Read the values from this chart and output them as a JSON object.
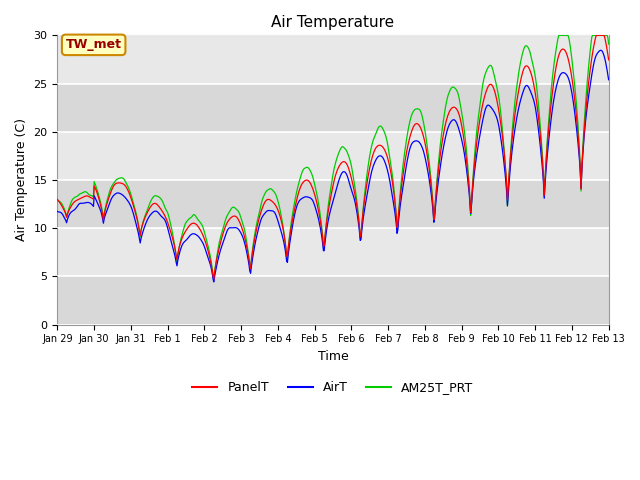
{
  "title": "Air Temperature",
  "xlabel": "Time",
  "ylabel": "Air Temperature (C)",
  "ylim": [
    0,
    30
  ],
  "annotation": "TW_met",
  "legend": [
    "PanelT",
    "AirT",
    "AM25T_PRT"
  ],
  "line_colors": [
    "red",
    "blue",
    "#00cc00"
  ],
  "bg_light": "#dcdcdc",
  "bg_dark": "#c8c8c8",
  "tick_labels": [
    "Jan 29",
    "Jan 30",
    "Jan 31",
    "Feb 1",
    "Feb 2",
    "Feb 3",
    "Feb 4",
    "Feb 5",
    "Feb 6",
    "Feb 7",
    "Feb 8",
    "Feb 9",
    "Feb 10",
    "Feb 11",
    "Feb 12",
    "Feb 13"
  ],
  "n_days": 15
}
